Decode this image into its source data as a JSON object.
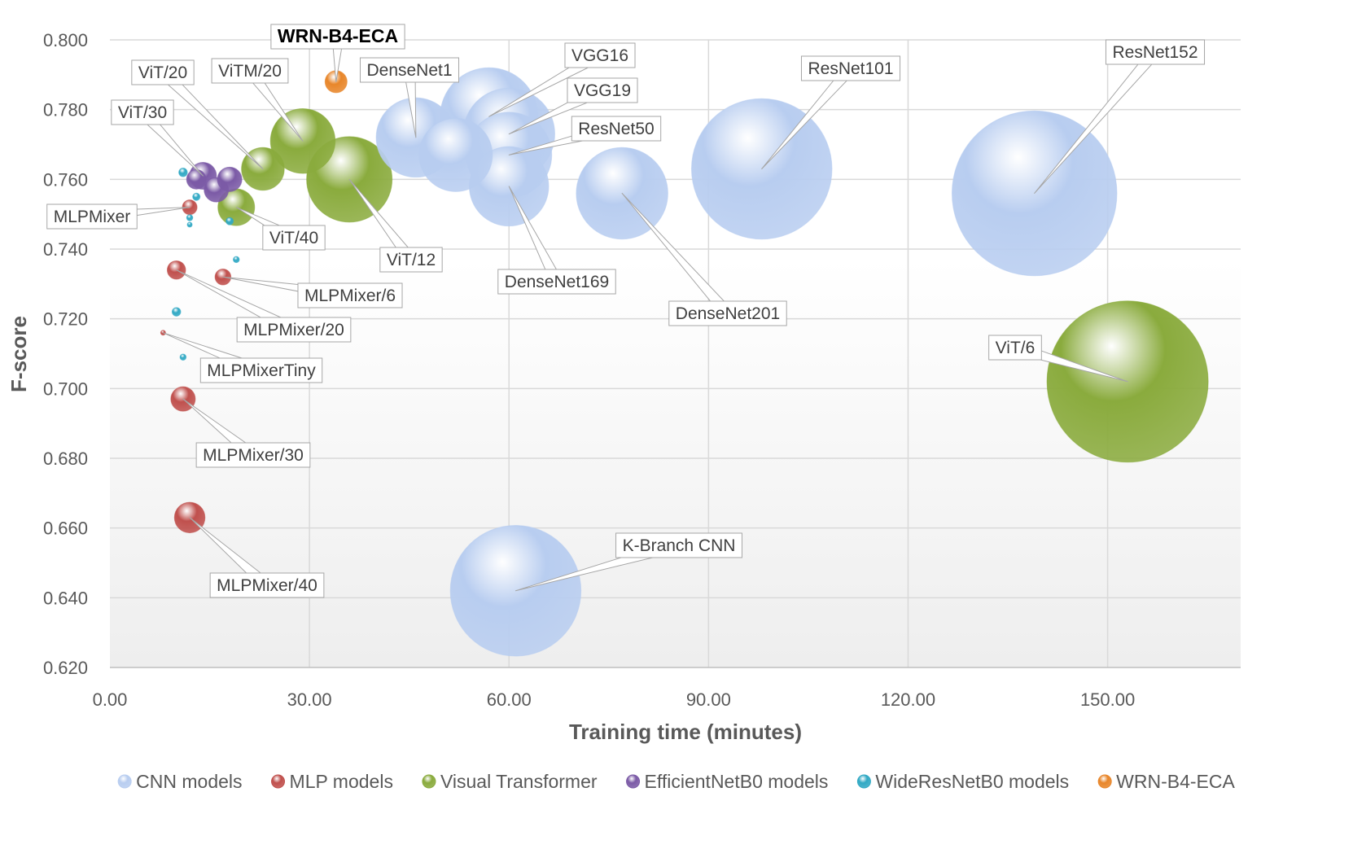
{
  "chart_data": {
    "type": "bubble",
    "xlabel": "Training time (minutes)",
    "ylabel": "F-score",
    "xlim": [
      0,
      170
    ],
    "ylim": [
      0.62,
      0.8
    ],
    "x_ticks": [
      "0.00",
      "30.00",
      "60.00",
      "90.00",
      "120.00",
      "150.00"
    ],
    "y_ticks": [
      "0.620",
      "0.640",
      "0.660",
      "0.680",
      "0.700",
      "0.720",
      "0.740",
      "0.760",
      "0.780",
      "0.800"
    ],
    "grid": true,
    "legend_position": "bottom",
    "series": [
      {
        "name": "CNN models",
        "color": "#b8cdf0",
        "points": [
          {
            "label": "DenseNet1",
            "x": 46,
            "y": 0.772,
            "size": 6.5
          },
          {
            "label": "",
            "x": 52,
            "y": 0.767,
            "size": 6.0
          },
          {
            "label": "VGG16",
            "x": 57,
            "y": 0.778,
            "size": 8.0
          },
          {
            "label": "VGG19",
            "x": 60,
            "y": 0.773,
            "size": 7.5
          },
          {
            "label": "ResNet50",
            "x": 60,
            "y": 0.767,
            "size": 7.0
          },
          {
            "label": "DenseNet169",
            "x": 60,
            "y": 0.758,
            "size": 6.5
          },
          {
            "label": "DenseNet201",
            "x": 77,
            "y": 0.756,
            "size": 7.5
          },
          {
            "label": "ResNet101",
            "x": 98,
            "y": 0.763,
            "size": 11.5
          },
          {
            "label": "ResNet152",
            "x": 139,
            "y": 0.756,
            "size": 13.5
          },
          {
            "label": "K-Branch CNN",
            "x": 61,
            "y": 0.642,
            "size": 10.7
          }
        ]
      },
      {
        "name": "MLP models",
        "color": "#c0504d",
        "points": [
          {
            "label": "MLPMixer",
            "x": 12,
            "y": 0.752,
            "size": 1.2
          },
          {
            "label": "MLPMixer/20",
            "x": 10,
            "y": 0.734,
            "size": 1.5
          },
          {
            "label": "MLPMixer/6",
            "x": 17,
            "y": 0.732,
            "size": 1.3
          },
          {
            "label": "MLPMixerTiny",
            "x": 8,
            "y": 0.716,
            "size": 0.4
          },
          {
            "label": "MLPMixer/30",
            "x": 11,
            "y": 0.697,
            "size": 2.0
          },
          {
            "label": "MLPMixer/40",
            "x": 12,
            "y": 0.663,
            "size": 2.5
          }
        ]
      },
      {
        "name": "Visual Transformer",
        "color": "#8aab3d",
        "points": [
          {
            "label": "ViT/40",
            "x": 19,
            "y": 0.752,
            "size": 3.0
          },
          {
            "label": "ViT/20",
            "x": 23,
            "y": 0.763,
            "size": 3.5
          },
          {
            "label": "ViTM/20",
            "x": 29,
            "y": 0.771,
            "size": 5.3
          },
          {
            "label": "ViT/12",
            "x": 36,
            "y": 0.76,
            "size": 7.0
          },
          {
            "label": "ViT/6",
            "x": 153,
            "y": 0.702,
            "size": 13.2
          }
        ]
      },
      {
        "name": "EfficientNetB0 models",
        "color": "#7b5aa6",
        "points": [
          {
            "label": "ViT/30",
            "x": 14,
            "y": 0.761,
            "size": 2.2
          },
          {
            "label": "",
            "x": 16,
            "y": 0.757,
            "size": 2.0
          },
          {
            "label": "",
            "x": 18,
            "y": 0.76,
            "size": 2.0
          },
          {
            "label": "",
            "x": 13,
            "y": 0.76,
            "size": 1.6
          }
        ]
      },
      {
        "name": "WideResNetB0 models",
        "color": "#31a9c4",
        "points": [
          {
            "label": "",
            "x": 11,
            "y": 0.762,
            "size": 0.7
          },
          {
            "label": "",
            "x": 13,
            "y": 0.755,
            "size": 0.6
          },
          {
            "label": "",
            "x": 12,
            "y": 0.749,
            "size": 0.5
          },
          {
            "label": "",
            "x": 12,
            "y": 0.747,
            "size": 0.4
          },
          {
            "label": "",
            "x": 18,
            "y": 0.748,
            "size": 0.6
          },
          {
            "label": "",
            "x": 19,
            "y": 0.737,
            "size": 0.5
          },
          {
            "label": "",
            "x": 10,
            "y": 0.722,
            "size": 0.7
          },
          {
            "label": "",
            "x": 11,
            "y": 0.709,
            "size": 0.5
          }
        ]
      },
      {
        "name": "WRN-B4-ECA",
        "color": "#e8862a",
        "points": [
          {
            "label": "WRN-B4-ECA",
            "x": 34,
            "y": 0.788,
            "size": 1.8
          }
        ]
      }
    ]
  }
}
